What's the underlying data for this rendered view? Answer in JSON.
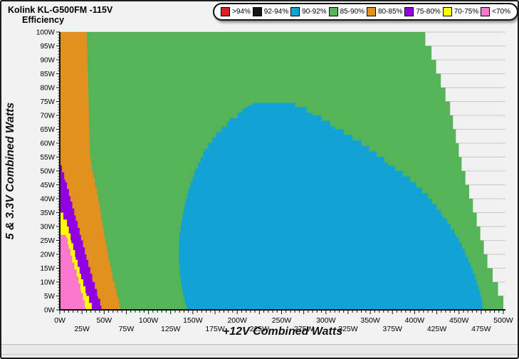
{
  "header": {
    "title": "Kolink KL-G500FM -115V",
    "subtitle": "Efficiency"
  },
  "legend": {
    "items": [
      {
        "label": ">94%",
        "color": "#d42424"
      },
      {
        "label": "92-94%",
        "color": "#161616"
      },
      {
        "label": "90-92%",
        "color": "#12a2d5"
      },
      {
        "label": "85-90%",
        "color": "#55b457"
      },
      {
        "label": "80-85%",
        "color": "#e2911f"
      },
      {
        "label": "75-80%",
        "color": "#9100e0"
      },
      {
        "label": "70-75%",
        "color": "#ffff00"
      },
      {
        "label": "<70%",
        "color": "#f878cd"
      }
    ]
  },
  "axes": {
    "x_title": "+12V Combined Watts",
    "y_title": "5 & 3.3V Combined Watts"
  },
  "chart_data": {
    "type": "heatmap",
    "style": "filled-contour-efficiency-map",
    "title": "Kolink KL-G500FM -115V",
    "subtitle": "Efficiency",
    "xlabel": "+12V Combined Watts",
    "ylabel": "5 & 3.3V Combined Watts",
    "xlim": [
      0,
      500
    ],
    "ylim": [
      0,
      100
    ],
    "grid": "horizontal-only",
    "legend_position": "top-right",
    "background_color": "#f1f1f1",
    "gridline_color": "#c8c8c8",
    "axis_color": "#111111",
    "x_major_step": 25,
    "x_minor_step": 5,
    "y_major_step": 5,
    "y_minor_step": 1,
    "x_tick_labels_row1": [
      "0W",
      "50W",
      "100W",
      "150W",
      "200W",
      "250W",
      "300W",
      "350W",
      "400W",
      "450W",
      "500W"
    ],
    "x_tick_labels_row2": [
      "25W",
      "75W",
      "125W",
      "175W",
      "225W",
      "275W",
      "325W",
      "375W",
      "425W",
      "475W"
    ],
    "y_tick_labels": [
      "100W",
      "95W",
      "90W",
      "85W",
      "80W",
      "75W",
      "70W",
      "65W",
      "60W",
      "55W",
      "50W",
      "45W",
      "40W",
      "35W",
      "30W",
      "25W",
      "20W",
      "15W",
      "10W",
      "5W",
      "0W"
    ],
    "regions": [
      {
        "name": "85-90%",
        "color": "#55b457",
        "step": 5,
        "points": [
          [
            0,
            100
          ],
          [
            405,
            100
          ],
          [
            419,
            90
          ],
          [
            440,
            70
          ],
          [
            453,
            50
          ],
          [
            470,
            30
          ],
          [
            482,
            15
          ],
          [
            500,
            0
          ],
          [
            0,
            0
          ]
        ]
      },
      {
        "name": "90-92%",
        "color": "#12a2d5",
        "step": 2,
        "points": [
          [
            220,
            74.5
          ],
          [
            250,
            74.5
          ],
          [
            265,
            73
          ],
          [
            285,
            70
          ],
          [
            310,
            65
          ],
          [
            340,
            59
          ],
          [
            370,
            52
          ],
          [
            395,
            46
          ],
          [
            415,
            40
          ],
          [
            432,
            33
          ],
          [
            447,
            26
          ],
          [
            458,
            19
          ],
          [
            468,
            11
          ],
          [
            474,
            5
          ],
          [
            477,
            0
          ],
          [
            145,
            0
          ],
          [
            140,
            5
          ],
          [
            136,
            12
          ],
          [
            134,
            20
          ],
          [
            135,
            28
          ],
          [
            139,
            36
          ],
          [
            145,
            44
          ],
          [
            153,
            51
          ],
          [
            163,
            58
          ],
          [
            176,
            64
          ],
          [
            192,
            69
          ],
          [
            205,
            72
          ]
        ]
      },
      {
        "name": "80-85%",
        "color": "#e2911f",
        "step": 2.5,
        "points": [
          [
            0,
            100
          ],
          [
            30,
            100
          ],
          [
            32,
            80
          ],
          [
            33,
            65
          ],
          [
            34,
            55
          ],
          [
            36,
            50
          ],
          [
            40,
            44
          ],
          [
            44,
            38
          ],
          [
            47,
            32
          ],
          [
            50,
            26
          ],
          [
            55,
            18
          ],
          [
            60,
            10
          ],
          [
            65,
            4
          ],
          [
            68,
            0
          ],
          [
            0,
            0
          ]
        ]
      },
      {
        "name": "75-80%",
        "color": "#9100e0",
        "step": 2.5,
        "points": [
          [
            0,
            52
          ],
          [
            6,
            46
          ],
          [
            12,
            39
          ],
          [
            18,
            32
          ],
          [
            24,
            25
          ],
          [
            30,
            18
          ],
          [
            37,
            10
          ],
          [
            43,
            4
          ],
          [
            47,
            0
          ],
          [
            0,
            0
          ]
        ]
      },
      {
        "name": "70-75%",
        "color": "#ffff00",
        "step": 2.5,
        "points": [
          [
            0,
            35
          ],
          [
            8,
            30
          ],
          [
            13,
            24
          ],
          [
            18,
            18
          ],
          [
            24,
            11
          ],
          [
            30,
            5
          ],
          [
            36,
            0
          ],
          [
            0,
            0
          ]
        ]
      },
      {
        "name": "<70%",
        "color": "#f878cd",
        "step": 2.5,
        "points": [
          [
            0,
            27
          ],
          [
            7,
            26
          ],
          [
            10,
            22
          ],
          [
            14,
            17
          ],
          [
            19,
            12
          ],
          [
            24,
            6
          ],
          [
            29,
            0
          ],
          [
            0,
            0
          ]
        ]
      }
    ]
  }
}
